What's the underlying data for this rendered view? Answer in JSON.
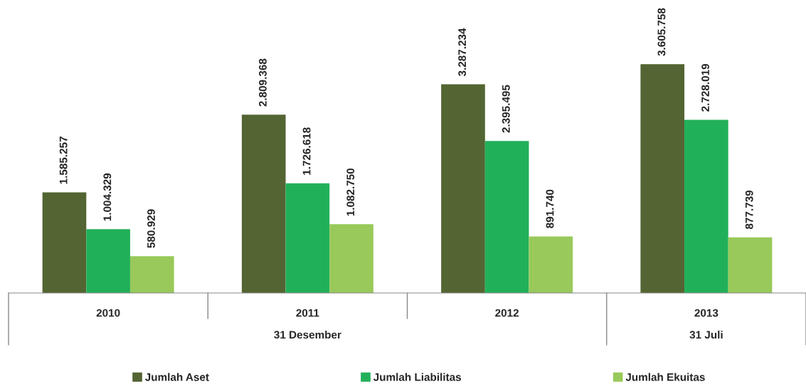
{
  "chart_data": {
    "type": "bar",
    "categories": [
      "2010",
      "2011",
      "2012",
      "2013"
    ],
    "series": [
      {
        "name": "Jumlah Aset",
        "color": "#536532",
        "values": [
          1585257,
          2809368,
          3287234,
          3605758
        ],
        "value_labels": [
          "1.585.257",
          "2.809.368",
          "3.287.234",
          "3.605.758"
        ]
      },
      {
        "name": "Jumlah Liabilitas",
        "color": "#21b05a",
        "values": [
          1004329,
          1726618,
          2395495,
          2728019
        ],
        "value_labels": [
          "1.004.329",
          "1.726.618",
          "2.395.495",
          "2.728.019"
        ]
      },
      {
        "name": "Jumlah Ekuitas",
        "color": "#98c95a",
        "values": [
          580929,
          1082750,
          891740,
          877739
        ],
        "value_labels": [
          "580.929",
          "1.082.750",
          "891.740",
          "877.739"
        ]
      }
    ],
    "annotations": [
      "31 Desember",
      "31 Juli"
    ],
    "legend": "bottom",
    "grid": false
  }
}
